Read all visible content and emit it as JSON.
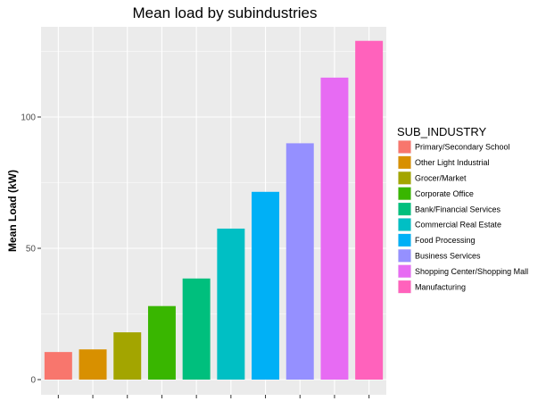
{
  "chart_data": {
    "type": "bar",
    "title": "Mean load by subindustries",
    "xlabel": "",
    "ylabel": "Mean Load (kW)",
    "ylim": [
      0,
      131
    ],
    "yticks": [
      0,
      50,
      100
    ],
    "grid": true,
    "legend_position": "right",
    "legend_title": "SUB_INDUSTRY",
    "categories": [
      "Primary/Secondary School",
      "Other Light Industrial",
      "Grocer/Market",
      "Corporate Office",
      "Bank/Financial Services",
      "Commercial Real Estate",
      "Food Processing",
      "Business Services",
      "Shopping Center/Shopping Mall",
      "Manufacturing"
    ],
    "values": [
      10.5,
      11.5,
      18,
      28,
      38.5,
      57.5,
      71.5,
      90,
      115,
      129
    ],
    "colors": [
      "#F8766D",
      "#D89000",
      "#A3A500",
      "#39B600",
      "#00BF7D",
      "#00BFC4",
      "#00B0F6",
      "#9590FF",
      "#E76BF3",
      "#FF62BC"
    ]
  },
  "theme": {
    "panel_background": "#EBEBEB",
    "grid_major": "#FFFFFF",
    "tick_color": "#333333",
    "tick_text_color": "#4D4D4D"
  }
}
